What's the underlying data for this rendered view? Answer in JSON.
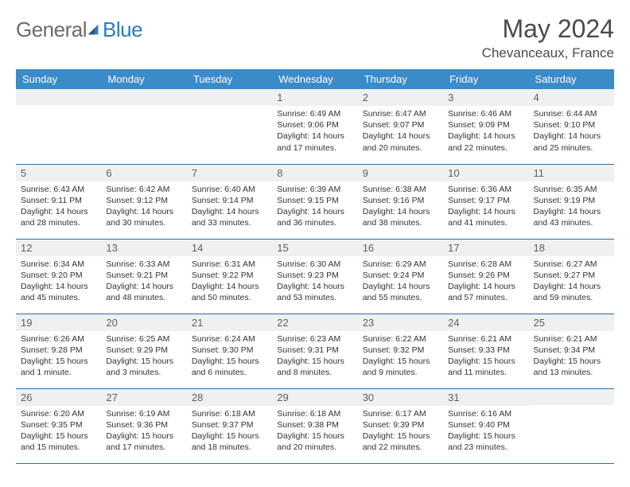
{
  "brand": {
    "part1": "General",
    "part2": "Blue"
  },
  "title": "May 2024",
  "location": "Chevanceaux, France",
  "colors": {
    "header_bg": "#3b8bc9",
    "header_text": "#ffffff",
    "divider": "#2e6da4",
    "daynum_bg": "#eef0f1",
    "logo_gray": "#6b6b6b",
    "logo_blue": "#2c7bbf"
  },
  "weekdays": [
    "Sunday",
    "Monday",
    "Tuesday",
    "Wednesday",
    "Thursday",
    "Friday",
    "Saturday"
  ],
  "weeks": [
    [
      {
        "n": "",
        "sr": "",
        "ss": "",
        "dl": ""
      },
      {
        "n": "",
        "sr": "",
        "ss": "",
        "dl": ""
      },
      {
        "n": "",
        "sr": "",
        "ss": "",
        "dl": ""
      },
      {
        "n": "1",
        "sr": "Sunrise: 6:49 AM",
        "ss": "Sunset: 9:06 PM",
        "dl": "Daylight: 14 hours and 17 minutes."
      },
      {
        "n": "2",
        "sr": "Sunrise: 6:47 AM",
        "ss": "Sunset: 9:07 PM",
        "dl": "Daylight: 14 hours and 20 minutes."
      },
      {
        "n": "3",
        "sr": "Sunrise: 6:46 AM",
        "ss": "Sunset: 9:09 PM",
        "dl": "Daylight: 14 hours and 22 minutes."
      },
      {
        "n": "4",
        "sr": "Sunrise: 6:44 AM",
        "ss": "Sunset: 9:10 PM",
        "dl": "Daylight: 14 hours and 25 minutes."
      }
    ],
    [
      {
        "n": "5",
        "sr": "Sunrise: 6:43 AM",
        "ss": "Sunset: 9:11 PM",
        "dl": "Daylight: 14 hours and 28 minutes."
      },
      {
        "n": "6",
        "sr": "Sunrise: 6:42 AM",
        "ss": "Sunset: 9:12 PM",
        "dl": "Daylight: 14 hours and 30 minutes."
      },
      {
        "n": "7",
        "sr": "Sunrise: 6:40 AM",
        "ss": "Sunset: 9:14 PM",
        "dl": "Daylight: 14 hours and 33 minutes."
      },
      {
        "n": "8",
        "sr": "Sunrise: 6:39 AM",
        "ss": "Sunset: 9:15 PM",
        "dl": "Daylight: 14 hours and 36 minutes."
      },
      {
        "n": "9",
        "sr": "Sunrise: 6:38 AM",
        "ss": "Sunset: 9:16 PM",
        "dl": "Daylight: 14 hours and 38 minutes."
      },
      {
        "n": "10",
        "sr": "Sunrise: 6:36 AM",
        "ss": "Sunset: 9:17 PM",
        "dl": "Daylight: 14 hours and 41 minutes."
      },
      {
        "n": "11",
        "sr": "Sunrise: 6:35 AM",
        "ss": "Sunset: 9:19 PM",
        "dl": "Daylight: 14 hours and 43 minutes."
      }
    ],
    [
      {
        "n": "12",
        "sr": "Sunrise: 6:34 AM",
        "ss": "Sunset: 9:20 PM",
        "dl": "Daylight: 14 hours and 45 minutes."
      },
      {
        "n": "13",
        "sr": "Sunrise: 6:33 AM",
        "ss": "Sunset: 9:21 PM",
        "dl": "Daylight: 14 hours and 48 minutes."
      },
      {
        "n": "14",
        "sr": "Sunrise: 6:31 AM",
        "ss": "Sunset: 9:22 PM",
        "dl": "Daylight: 14 hours and 50 minutes."
      },
      {
        "n": "15",
        "sr": "Sunrise: 6:30 AM",
        "ss": "Sunset: 9:23 PM",
        "dl": "Daylight: 14 hours and 53 minutes."
      },
      {
        "n": "16",
        "sr": "Sunrise: 6:29 AM",
        "ss": "Sunset: 9:24 PM",
        "dl": "Daylight: 14 hours and 55 minutes."
      },
      {
        "n": "17",
        "sr": "Sunrise: 6:28 AM",
        "ss": "Sunset: 9:26 PM",
        "dl": "Daylight: 14 hours and 57 minutes."
      },
      {
        "n": "18",
        "sr": "Sunrise: 6:27 AM",
        "ss": "Sunset: 9:27 PM",
        "dl": "Daylight: 14 hours and 59 minutes."
      }
    ],
    [
      {
        "n": "19",
        "sr": "Sunrise: 6:26 AM",
        "ss": "Sunset: 9:28 PM",
        "dl": "Daylight: 15 hours and 1 minute."
      },
      {
        "n": "20",
        "sr": "Sunrise: 6:25 AM",
        "ss": "Sunset: 9:29 PM",
        "dl": "Daylight: 15 hours and 3 minutes."
      },
      {
        "n": "21",
        "sr": "Sunrise: 6:24 AM",
        "ss": "Sunset: 9:30 PM",
        "dl": "Daylight: 15 hours and 6 minutes."
      },
      {
        "n": "22",
        "sr": "Sunrise: 6:23 AM",
        "ss": "Sunset: 9:31 PM",
        "dl": "Daylight: 15 hours and 8 minutes."
      },
      {
        "n": "23",
        "sr": "Sunrise: 6:22 AM",
        "ss": "Sunset: 9:32 PM",
        "dl": "Daylight: 15 hours and 9 minutes."
      },
      {
        "n": "24",
        "sr": "Sunrise: 6:21 AM",
        "ss": "Sunset: 9:33 PM",
        "dl": "Daylight: 15 hours and 11 minutes."
      },
      {
        "n": "25",
        "sr": "Sunrise: 6:21 AM",
        "ss": "Sunset: 9:34 PM",
        "dl": "Daylight: 15 hours and 13 minutes."
      }
    ],
    [
      {
        "n": "26",
        "sr": "Sunrise: 6:20 AM",
        "ss": "Sunset: 9:35 PM",
        "dl": "Daylight: 15 hours and 15 minutes."
      },
      {
        "n": "27",
        "sr": "Sunrise: 6:19 AM",
        "ss": "Sunset: 9:36 PM",
        "dl": "Daylight: 15 hours and 17 minutes."
      },
      {
        "n": "28",
        "sr": "Sunrise: 6:18 AM",
        "ss": "Sunset: 9:37 PM",
        "dl": "Daylight: 15 hours and 18 minutes."
      },
      {
        "n": "29",
        "sr": "Sunrise: 6:18 AM",
        "ss": "Sunset: 9:38 PM",
        "dl": "Daylight: 15 hours and 20 minutes."
      },
      {
        "n": "30",
        "sr": "Sunrise: 6:17 AM",
        "ss": "Sunset: 9:39 PM",
        "dl": "Daylight: 15 hours and 22 minutes."
      },
      {
        "n": "31",
        "sr": "Sunrise: 6:16 AM",
        "ss": "Sunset: 9:40 PM",
        "dl": "Daylight: 15 hours and 23 minutes."
      },
      {
        "n": "",
        "sr": "",
        "ss": "",
        "dl": ""
      }
    ]
  ]
}
